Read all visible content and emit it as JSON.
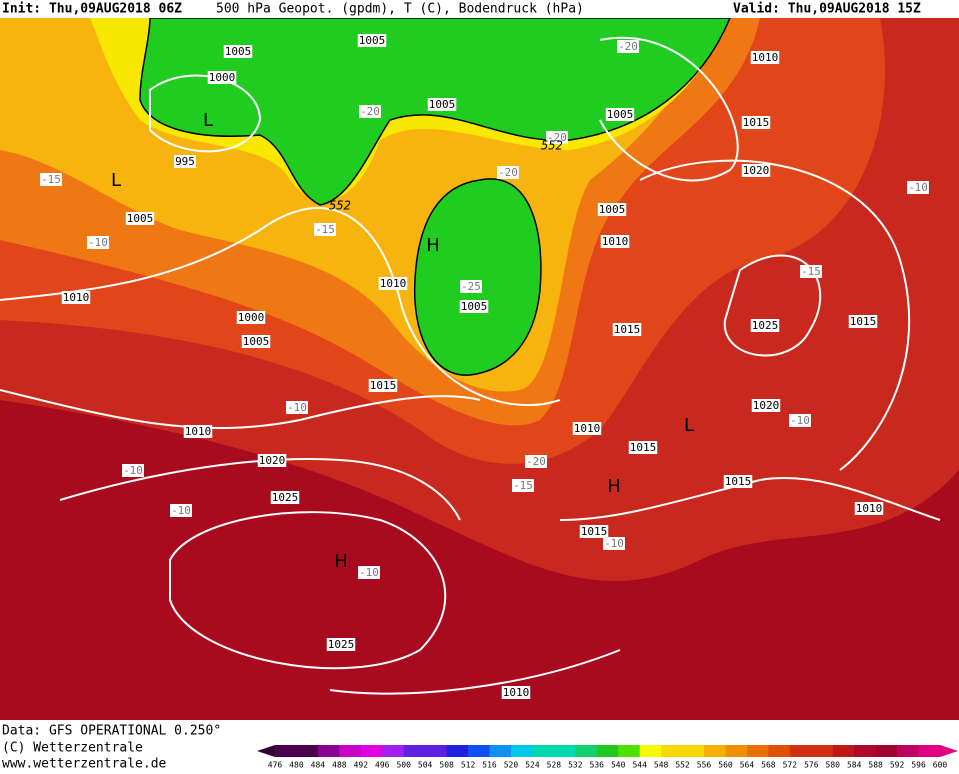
{
  "header": {
    "init": "Init: Thu,09AUG2018 06Z",
    "title": "500 hPa Geopot. (gpdm), T (C), Bodendruck (hPa)",
    "valid": "Valid: Thu,09AUG2018 15Z"
  },
  "footer": {
    "source": "Data: GFS OPERATIONAL 0.250°",
    "copyright": "(C) Wetterzentrale",
    "url": "www.wetterzentrale.de"
  },
  "colorbar": {
    "levels": [
      476,
      480,
      484,
      488,
      492,
      496,
      500,
      504,
      508,
      512,
      516,
      520,
      524,
      528,
      532,
      536,
      540,
      544,
      548,
      552,
      556,
      560,
      564,
      568,
      572,
      576,
      580,
      584,
      588,
      592,
      596,
      600
    ]
  },
  "map": {
    "isobar_labels": [
      "1005",
      "1005",
      "1000",
      "995",
      "1005",
      "1010",
      "1000",
      "1005",
      "1010",
      "1005",
      "1005",
      "1010",
      "1015",
      "1020",
      "1005",
      "1010",
      "1015",
      "1005",
      "1025",
      "1015",
      "1020",
      "1015",
      "1010",
      "1020",
      "1025",
      "1010",
      "1015",
      "1015",
      "1010",
      "1015",
      "1025",
      "1010"
    ],
    "temperature_labels": [
      "-15",
      "-10",
      "-15",
      "-20",
      "-20",
      "-20",
      "-20",
      "-25",
      "-10",
      "-10",
      "-10",
      "-15",
      "-10",
      "-10",
      "-20",
      "-15",
      "-10",
      "-10"
    ],
    "pressure_centers": [
      "L",
      "L",
      "H",
      "L",
      "H",
      "H"
    ],
    "geopotential_labels": [
      "552",
      "552"
    ]
  }
}
